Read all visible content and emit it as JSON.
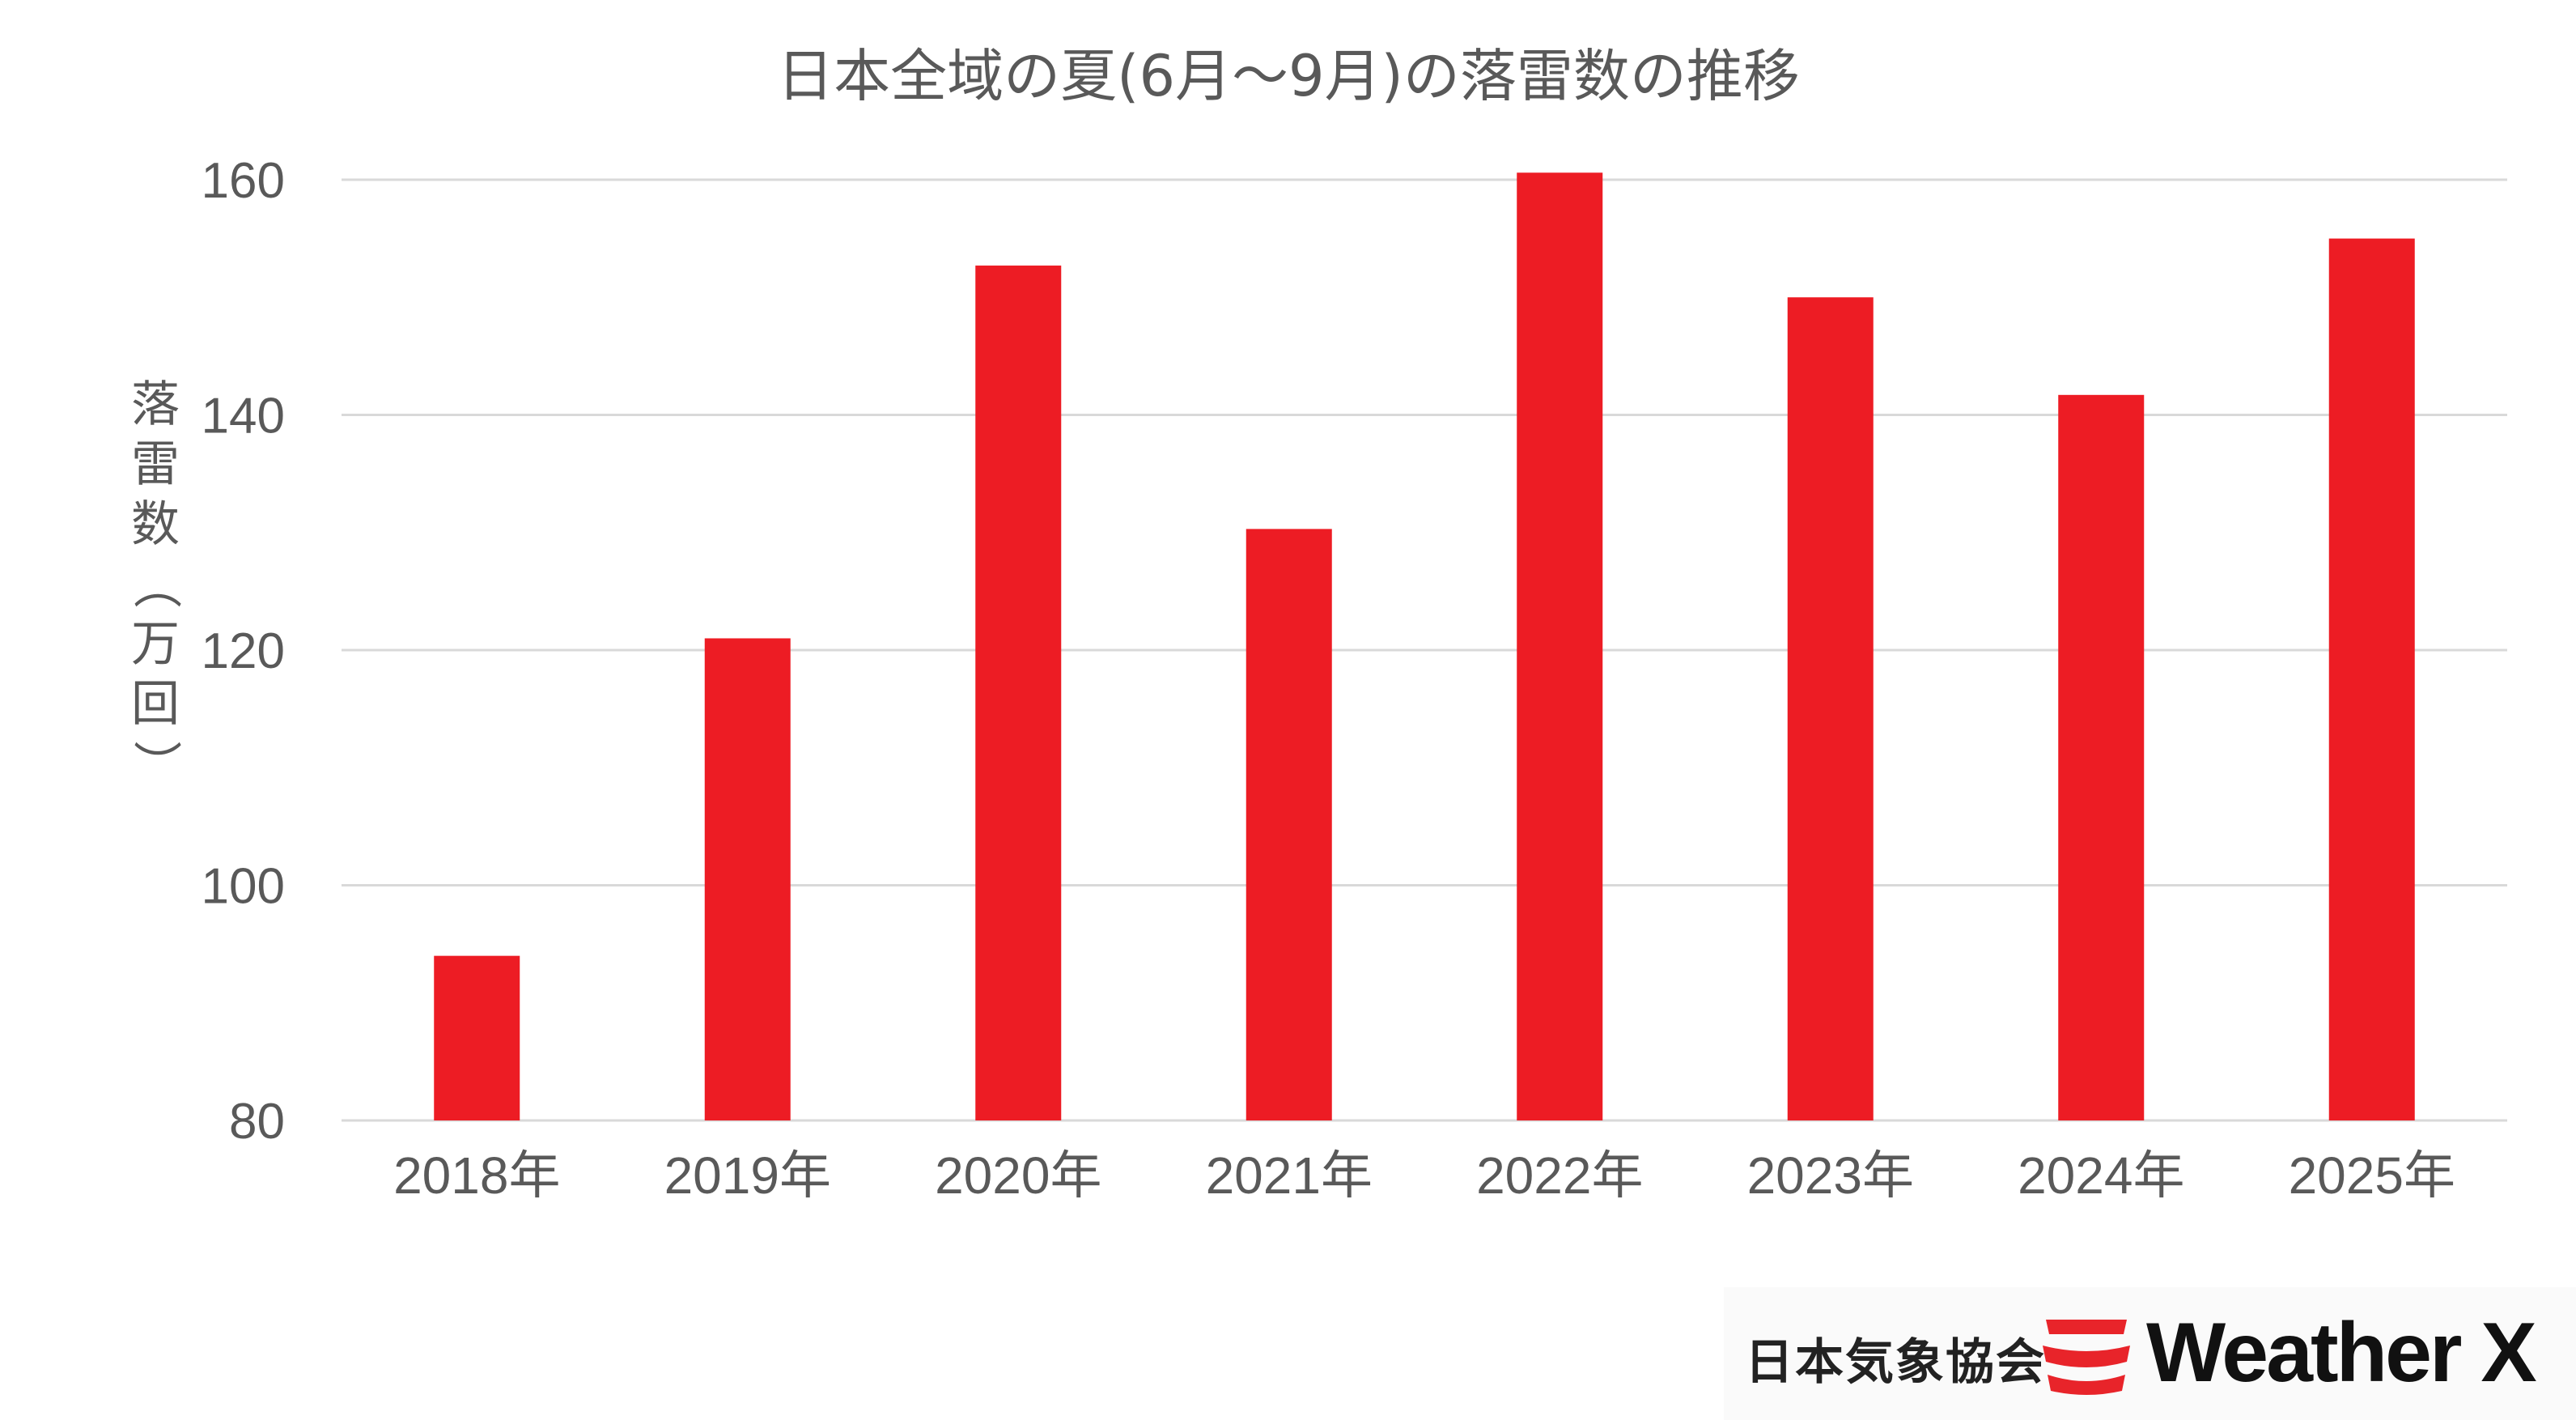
{
  "chart_data": {
    "type": "bar",
    "title": "日本全域の夏(6月～9月)の落雷数の推移",
    "xlabel": "",
    "ylabel": "落雷数（万回）",
    "categories": [
      "2018年",
      "2019年",
      "2020年",
      "2021年",
      "2022年",
      "2023年",
      "2024年",
      "2025年"
    ],
    "values": [
      94,
      121,
      152.7,
      130.3,
      160.6,
      150,
      141.7,
      155
    ],
    "ylim": [
      80,
      160
    ],
    "yticks": [
      "80",
      "100",
      "120",
      "140",
      "160"
    ],
    "grid": true,
    "legend": "none",
    "bar_color": "#ed1c24"
  },
  "logo": {
    "org_name": "日本気象協会",
    "brand_name": "Weather X",
    "brand_color": "#e8242a",
    "mark_icon": "weather-x-stripes-icon"
  }
}
